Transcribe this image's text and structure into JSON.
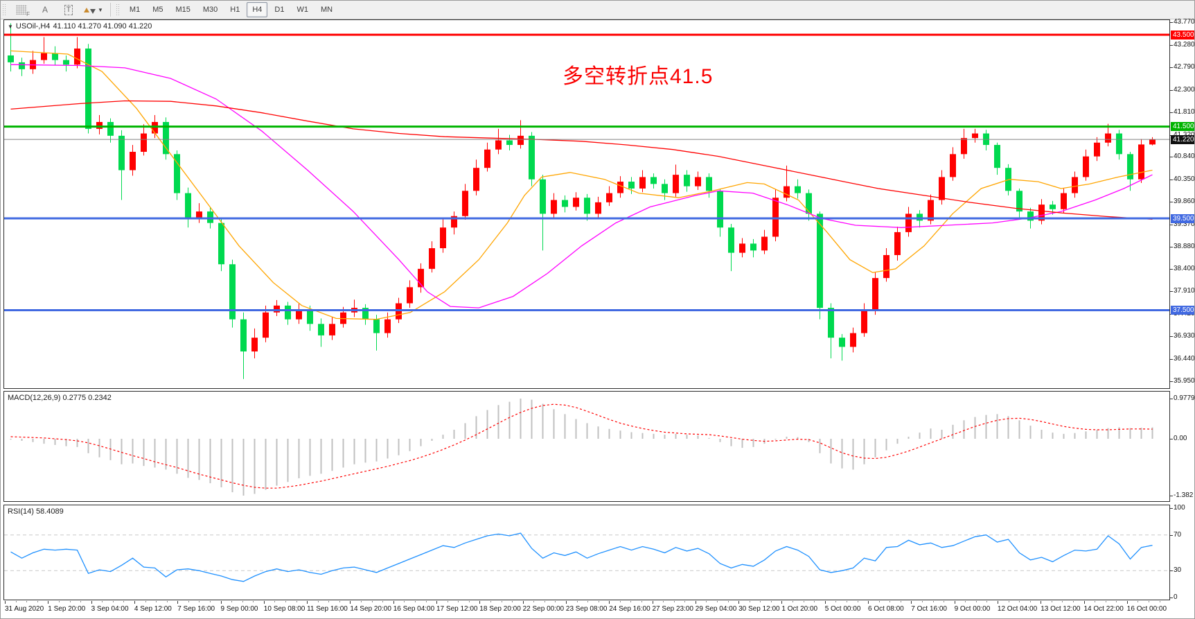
{
  "toolbar": {
    "tools": [
      {
        "name": "indicator-grid-tool",
        "label": "F"
      },
      {
        "name": "text-label-tool",
        "label": "A"
      },
      {
        "name": "text-box-tool",
        "label": "T"
      },
      {
        "name": "cycle-arrows-tool",
        "label": ""
      }
    ],
    "timeframes": [
      "M1",
      "M5",
      "M15",
      "M30",
      "H1",
      "H4",
      "D1",
      "W1",
      "MN"
    ],
    "active_timeframe": "H4"
  },
  "price_pane": {
    "title_symbol": "USOil-,H4",
    "title_ohlc": "41.110 41.270 41.090 41.220",
    "annotation_text": "多空转折点41.5",
    "axis_ticks": [
      "43.770",
      "43.280",
      "42.790",
      "42.300",
      "41.810",
      "41.320",
      "40.840",
      "40.350",
      "39.860",
      "39.370",
      "38.880",
      "38.400",
      "37.910",
      "37.420",
      "36.930",
      "36.440",
      "35.950"
    ],
    "levels": [
      {
        "price": 43.5,
        "label": "43.500",
        "line_color": "#ff0000",
        "badge_bg": "#ff0000",
        "thickness": 3
      },
      {
        "price": 41.5,
        "label": "41.500",
        "line_color": "#00b400",
        "badge_bg": "#00b400",
        "thickness": 3
      },
      {
        "price": 41.22,
        "label": "41.220",
        "line_color": "#808080",
        "badge_bg": "#111111",
        "thickness": 1
      },
      {
        "price": 39.5,
        "label": "39.500",
        "line_color": "#4169e1",
        "badge_bg": "#4169e1",
        "thickness": 3
      },
      {
        "price": 37.5,
        "label": "37.500",
        "line_color": "#4169e1",
        "badge_bg": "#4169e1",
        "thickness": 3
      }
    ]
  },
  "macd_pane": {
    "label": "MACD(12,26,9) 0.2775 0.2342",
    "axis_ticks": [
      "0.9779",
      "0.00",
      "-1.382"
    ]
  },
  "rsi_pane": {
    "label": "RSI(14) 58.4089",
    "axis_ticks": [
      "100",
      "70",
      "30",
      "0"
    ]
  },
  "time_axis": {
    "labels": [
      "31 Aug 2020",
      "1 Sep 20:00",
      "3 Sep 04:00",
      "4 Sep 12:00",
      "7 Sep 16:00",
      "9 Sep 00:00",
      "10 Sep 08:00",
      "11 Sep 16:00",
      "14 Sep 20:00",
      "16 Sep 04:00",
      "17 Sep 12:00",
      "18 Sep 20:00",
      "22 Sep 00:00",
      "23 Sep 08:00",
      "24 Sep 16:00",
      "27 Sep 23:00",
      "29 Sep 04:00",
      "30 Sep 12:00",
      "1 Oct 20:00",
      "5 Oct 00:00",
      "6 Oct 08:00",
      "7 Oct 16:00",
      "9 Oct 00:00",
      "12 Oct 04:00",
      "13 Oct 12:00",
      "14 Oct 22:00",
      "16 Oct 00:00"
    ]
  },
  "chart_data": {
    "type": "candlestick+indicators",
    "symbol": "USOil",
    "timeframe": "H4",
    "note": "Chinese color convention: up candles red, down candles green",
    "colors": {
      "up": "#ff0000",
      "down": "#00d94f",
      "ma_fast": "#ffa500",
      "ma_mid": "#ff00ff",
      "ma_slow": "#ff0000",
      "macd_bar": "#c0c0c0",
      "macd_signal": "#ff0000",
      "rsi_line": "#1e90ff",
      "rsi_level": "#c8c8c8"
    },
    "price_axis": {
      "min": 35.8,
      "max": 43.82
    },
    "candles": {
      "first_open": 43.05,
      "closes": [
        42.9,
        42.75,
        42.95,
        43.1,
        42.95,
        42.85,
        43.2,
        41.45,
        41.6,
        41.3,
        40.55,
        40.95,
        41.35,
        41.6,
        40.9,
        40.05,
        39.5,
        39.65,
        39.4,
        38.5,
        37.3,
        36.6,
        36.9,
        37.45,
        37.6,
        37.3,
        37.5,
        37.2,
        36.95,
        37.2,
        37.45,
        37.55,
        37.3,
        37.0,
        37.3,
        37.65,
        38.0,
        38.4,
        38.85,
        39.3,
        39.55,
        40.1,
        40.6,
        41.0,
        41.2,
        41.1,
        41.3,
        40.35,
        39.6,
        39.9,
        39.75,
        39.95,
        39.6,
        39.85,
        40.05,
        40.3,
        40.15,
        40.4,
        40.25,
        40.05,
        40.45,
        40.2,
        40.4,
        40.1,
        39.3,
        38.75,
        38.95,
        38.8,
        39.1,
        39.95,
        40.2,
        40.05,
        39.6,
        37.55,
        36.9,
        36.7,
        37.0,
        37.5,
        38.2,
        38.7,
        39.2,
        39.6,
        39.45,
        39.9,
        40.4,
        40.9,
        41.25,
        41.35,
        41.1,
        40.6,
        40.1,
        39.65,
        39.45,
        39.8,
        39.7,
        40.05,
        40.4,
        40.85,
        41.15,
        41.35,
        40.9,
        40.35,
        41.11,
        41.22
      ],
      "wick_hi": [
        0.7,
        0.1,
        0.2,
        0.35,
        0.15,
        0.1,
        0.25,
        0.1,
        0.15,
        0.08,
        0.12,
        0.15,
        0.2,
        0.15,
        0.1,
        0.08,
        0.12,
        0.18,
        0.1,
        0.08,
        0.1,
        0.15,
        0.2,
        0.15,
        0.12,
        0.08,
        0.15,
        0.1,
        0.12,
        0.15,
        0.12,
        0.18,
        0.08,
        0.1,
        0.15,
        0.12,
        0.15,
        0.12,
        0.15,
        0.2,
        0.1,
        0.15,
        0.18,
        0.15,
        0.25,
        0.12,
        0.34,
        0.08,
        0.1,
        0.15,
        0.1,
        0.12,
        0.08,
        0.12,
        0.15,
        0.12,
        0.1,
        0.15,
        0.08,
        0.1,
        0.22,
        0.1,
        0.12,
        0.08,
        0.05,
        0.08,
        0.12,
        0.1,
        0.15,
        0.18,
        0.45,
        0.15,
        0.08,
        0.05,
        0.1,
        0.08,
        0.12,
        0.15,
        0.12,
        0.15,
        0.12,
        0.15,
        0.08,
        0.12,
        0.15,
        0.15,
        0.2,
        0.1,
        0.08,
        0.05,
        0.08,
        0.05,
        0.08,
        0.12,
        0.08,
        0.1,
        0.12,
        0.15,
        0.12,
        0.21,
        0.08,
        0.05,
        0.12,
        0.05
      ],
      "wick_lo": [
        0.2,
        0.15,
        0.1,
        0.08,
        0.12,
        0.15,
        0.08,
        0.1,
        0.12,
        0.15,
        0.65,
        0.12,
        0.08,
        0.1,
        0.12,
        0.15,
        0.2,
        0.1,
        0.12,
        0.15,
        0.18,
        0.6,
        0.15,
        0.1,
        0.08,
        0.12,
        0.1,
        0.15,
        0.25,
        0.1,
        0.08,
        0.1,
        0.12,
        0.38,
        0.1,
        0.08,
        0.1,
        0.12,
        0.08,
        0.1,
        0.15,
        0.08,
        0.1,
        0.08,
        0.1,
        0.12,
        0.08,
        0.15,
        0.8,
        0.1,
        0.12,
        0.08,
        0.15,
        0.1,
        0.08,
        0.1,
        0.12,
        0.08,
        0.1,
        0.15,
        0.08,
        0.12,
        0.08,
        0.15,
        0.2,
        0.4,
        0.1,
        0.15,
        0.08,
        0.1,
        0.08,
        0.12,
        0.15,
        0.25,
        0.45,
        0.3,
        0.12,
        0.08,
        0.1,
        0.08,
        0.12,
        0.1,
        0.15,
        0.08,
        0.1,
        0.08,
        0.1,
        0.1,
        0.12,
        0.15,
        0.1,
        0.15,
        0.17,
        0.08,
        0.12,
        0.08,
        0.1,
        0.08,
        0.1,
        0.08,
        0.12,
        0.25,
        0.08,
        0.02
      ]
    },
    "moving_averages": [
      {
        "name": "fast",
        "color": "#ffa500",
        "points": [
          [
            0,
            43.15
          ],
          [
            0.05,
            43.08
          ],
          [
            0.08,
            42.7
          ],
          [
            0.11,
            41.9
          ],
          [
            0.14,
            40.9
          ],
          [
            0.17,
            39.9
          ],
          [
            0.2,
            38.9
          ],
          [
            0.23,
            38.1
          ],
          [
            0.255,
            37.6
          ],
          [
            0.285,
            37.32
          ],
          [
            0.32,
            37.3
          ],
          [
            0.35,
            37.45
          ],
          [
            0.38,
            37.9
          ],
          [
            0.41,
            38.6
          ],
          [
            0.435,
            39.4
          ],
          [
            0.45,
            40.0
          ],
          [
            0.465,
            40.4
          ],
          [
            0.49,
            40.5
          ],
          [
            0.52,
            40.35
          ],
          [
            0.55,
            40.05
          ],
          [
            0.585,
            39.95
          ],
          [
            0.615,
            40.1
          ],
          [
            0.645,
            40.28
          ],
          [
            0.66,
            40.25
          ],
          [
            0.69,
            39.9
          ],
          [
            0.715,
            39.2
          ],
          [
            0.735,
            38.6
          ],
          [
            0.755,
            38.32
          ],
          [
            0.775,
            38.4
          ],
          [
            0.8,
            38.9
          ],
          [
            0.825,
            39.6
          ],
          [
            0.85,
            40.15
          ],
          [
            0.875,
            40.35
          ],
          [
            0.9,
            40.3
          ],
          [
            0.92,
            40.15
          ],
          [
            0.945,
            40.25
          ],
          [
            0.97,
            40.4
          ],
          [
            1,
            40.55
          ]
        ]
      },
      {
        "name": "mid",
        "color": "#ff00ff",
        "points": [
          [
            0,
            42.85
          ],
          [
            0.06,
            42.83
          ],
          [
            0.1,
            42.78
          ],
          [
            0.14,
            42.55
          ],
          [
            0.18,
            42.1
          ],
          [
            0.22,
            41.4
          ],
          [
            0.26,
            40.55
          ],
          [
            0.3,
            39.65
          ],
          [
            0.34,
            38.6
          ],
          [
            0.365,
            37.9
          ],
          [
            0.385,
            37.58
          ],
          [
            0.41,
            37.55
          ],
          [
            0.44,
            37.8
          ],
          [
            0.47,
            38.3
          ],
          [
            0.5,
            38.9
          ],
          [
            0.53,
            39.4
          ],
          [
            0.56,
            39.75
          ],
          [
            0.6,
            40.0
          ],
          [
            0.62,
            40.1
          ],
          [
            0.65,
            40.05
          ],
          [
            0.68,
            39.8
          ],
          [
            0.71,
            39.5
          ],
          [
            0.74,
            39.35
          ],
          [
            0.78,
            39.3
          ],
          [
            0.82,
            39.35
          ],
          [
            0.86,
            39.4
          ],
          [
            0.89,
            39.5
          ],
          [
            0.92,
            39.65
          ],
          [
            0.95,
            39.9
          ],
          [
            0.975,
            40.15
          ],
          [
            1,
            40.45
          ]
        ]
      },
      {
        "name": "slow",
        "color": "#ff0000",
        "points": [
          [
            0,
            41.88
          ],
          [
            0.06,
            42.0
          ],
          [
            0.1,
            42.06
          ],
          [
            0.14,
            42.05
          ],
          [
            0.18,
            41.95
          ],
          [
            0.22,
            41.8
          ],
          [
            0.26,
            41.62
          ],
          [
            0.3,
            41.45
          ],
          [
            0.34,
            41.35
          ],
          [
            0.38,
            41.28
          ],
          [
            0.42,
            41.25
          ],
          [
            0.46,
            41.22
          ],
          [
            0.5,
            41.18
          ],
          [
            0.54,
            41.1
          ],
          [
            0.58,
            41.0
          ],
          [
            0.62,
            40.85
          ],
          [
            0.66,
            40.65
          ],
          [
            0.7,
            40.45
          ],
          [
            0.73,
            40.3
          ],
          [
            0.76,
            40.15
          ],
          [
            0.8,
            40.0
          ],
          [
            0.84,
            39.85
          ],
          [
            0.88,
            39.72
          ],
          [
            0.92,
            39.62
          ],
          [
            0.96,
            39.54
          ],
          [
            1,
            39.48
          ]
        ]
      }
    ],
    "macd": {
      "range": [
        -1.382,
        0.9779
      ],
      "histogram": [
        -0.02,
        -0.05,
        -0.08,
        -0.12,
        -0.15,
        -0.18,
        -0.2,
        -0.35,
        -0.45,
        -0.52,
        -0.62,
        -0.6,
        -0.66,
        -0.7,
        -0.75,
        -0.85,
        -0.95,
        -1.0,
        -1.08,
        -1.18,
        -1.3,
        -1.382,
        -1.34,
        -1.24,
        -1.14,
        -1.05,
        -0.96,
        -0.9,
        -0.85,
        -0.78,
        -0.7,
        -0.62,
        -0.58,
        -0.55,
        -0.48,
        -0.4,
        -0.3,
        -0.18,
        -0.05,
        0.1,
        0.22,
        0.38,
        0.55,
        0.7,
        0.82,
        0.9,
        0.9779,
        0.95,
        0.85,
        0.72,
        0.6,
        0.48,
        0.38,
        0.3,
        0.24,
        0.2,
        0.16,
        0.14,
        0.12,
        0.1,
        0.12,
        0.1,
        0.08,
        0.02,
        -0.08,
        -0.18,
        -0.22,
        -0.2,
        -0.12,
        -0.02,
        0.05,
        0.04,
        -0.08,
        -0.35,
        -0.6,
        -0.72,
        -0.75,
        -0.62,
        -0.45,
        -0.28,
        -0.12,
        0.05,
        0.15,
        0.25,
        0.22,
        0.34,
        0.45,
        0.53,
        0.58,
        0.6,
        0.55,
        0.45,
        0.32,
        0.22,
        0.15,
        0.12,
        0.14,
        0.18,
        0.22,
        0.26,
        0.28,
        0.26,
        0.27,
        0.2775
      ],
      "signal": [
        0.05,
        0.04,
        0.03,
        0.02,
        0.0,
        -0.02,
        -0.05,
        -0.1,
        -0.17,
        -0.25,
        -0.33,
        -0.41,
        -0.48,
        -0.56,
        -0.63,
        -0.7,
        -0.78,
        -0.86,
        -0.93,
        -1.0,
        -1.07,
        -1.13,
        -1.18,
        -1.2,
        -1.2,
        -1.17,
        -1.13,
        -1.08,
        -1.03,
        -0.97,
        -0.91,
        -0.85,
        -0.79,
        -0.73,
        -0.67,
        -0.6,
        -0.53,
        -0.45,
        -0.36,
        -0.26,
        -0.15,
        -0.03,
        0.1,
        0.24,
        0.38,
        0.52,
        0.64,
        0.74,
        0.81,
        0.84,
        0.82,
        0.76,
        0.67,
        0.57,
        0.47,
        0.38,
        0.31,
        0.25,
        0.2,
        0.16,
        0.14,
        0.12,
        0.11,
        0.1,
        0.07,
        0.03,
        -0.01,
        -0.04,
        -0.06,
        -0.05,
        -0.03,
        -0.01,
        -0.02,
        -0.1,
        -0.22,
        -0.34,
        -0.42,
        -0.47,
        -0.48,
        -0.45,
        -0.38,
        -0.3,
        -0.2,
        -0.1,
        0.0,
        0.1,
        0.2,
        0.3,
        0.38,
        0.45,
        0.49,
        0.5,
        0.47,
        0.42,
        0.36,
        0.3,
        0.26,
        0.23,
        0.22,
        0.22,
        0.23,
        0.24,
        0.24,
        0.2342
      ]
    },
    "rsi": {
      "range": [
        0,
        100
      ],
      "levels": [
        30,
        70
      ],
      "values": [
        51,
        44,
        50,
        54,
        53,
        54,
        53,
        27,
        31,
        29,
        36,
        44,
        34,
        33,
        23,
        31,
        32,
        30,
        27,
        24,
        20,
        18,
        24,
        29,
        32,
        29,
        31,
        28,
        26,
        30,
        33,
        34,
        31,
        28,
        33,
        38,
        43,
        48,
        53,
        58,
        56,
        61,
        65,
        69,
        71,
        69,
        72,
        55,
        44,
        50,
        47,
        51,
        44,
        49,
        53,
        57,
        53,
        57,
        54,
        50,
        56,
        52,
        55,
        49,
        38,
        33,
        37,
        35,
        42,
        52,
        57,
        53,
        46,
        31,
        28,
        30,
        33,
        44,
        41,
        56,
        57,
        64,
        59,
        61,
        56,
        58,
        63,
        68,
        70,
        62,
        65,
        50,
        42,
        45,
        40,
        47,
        53,
        52,
        54,
        69,
        60,
        43,
        56,
        58.41
      ]
    }
  }
}
